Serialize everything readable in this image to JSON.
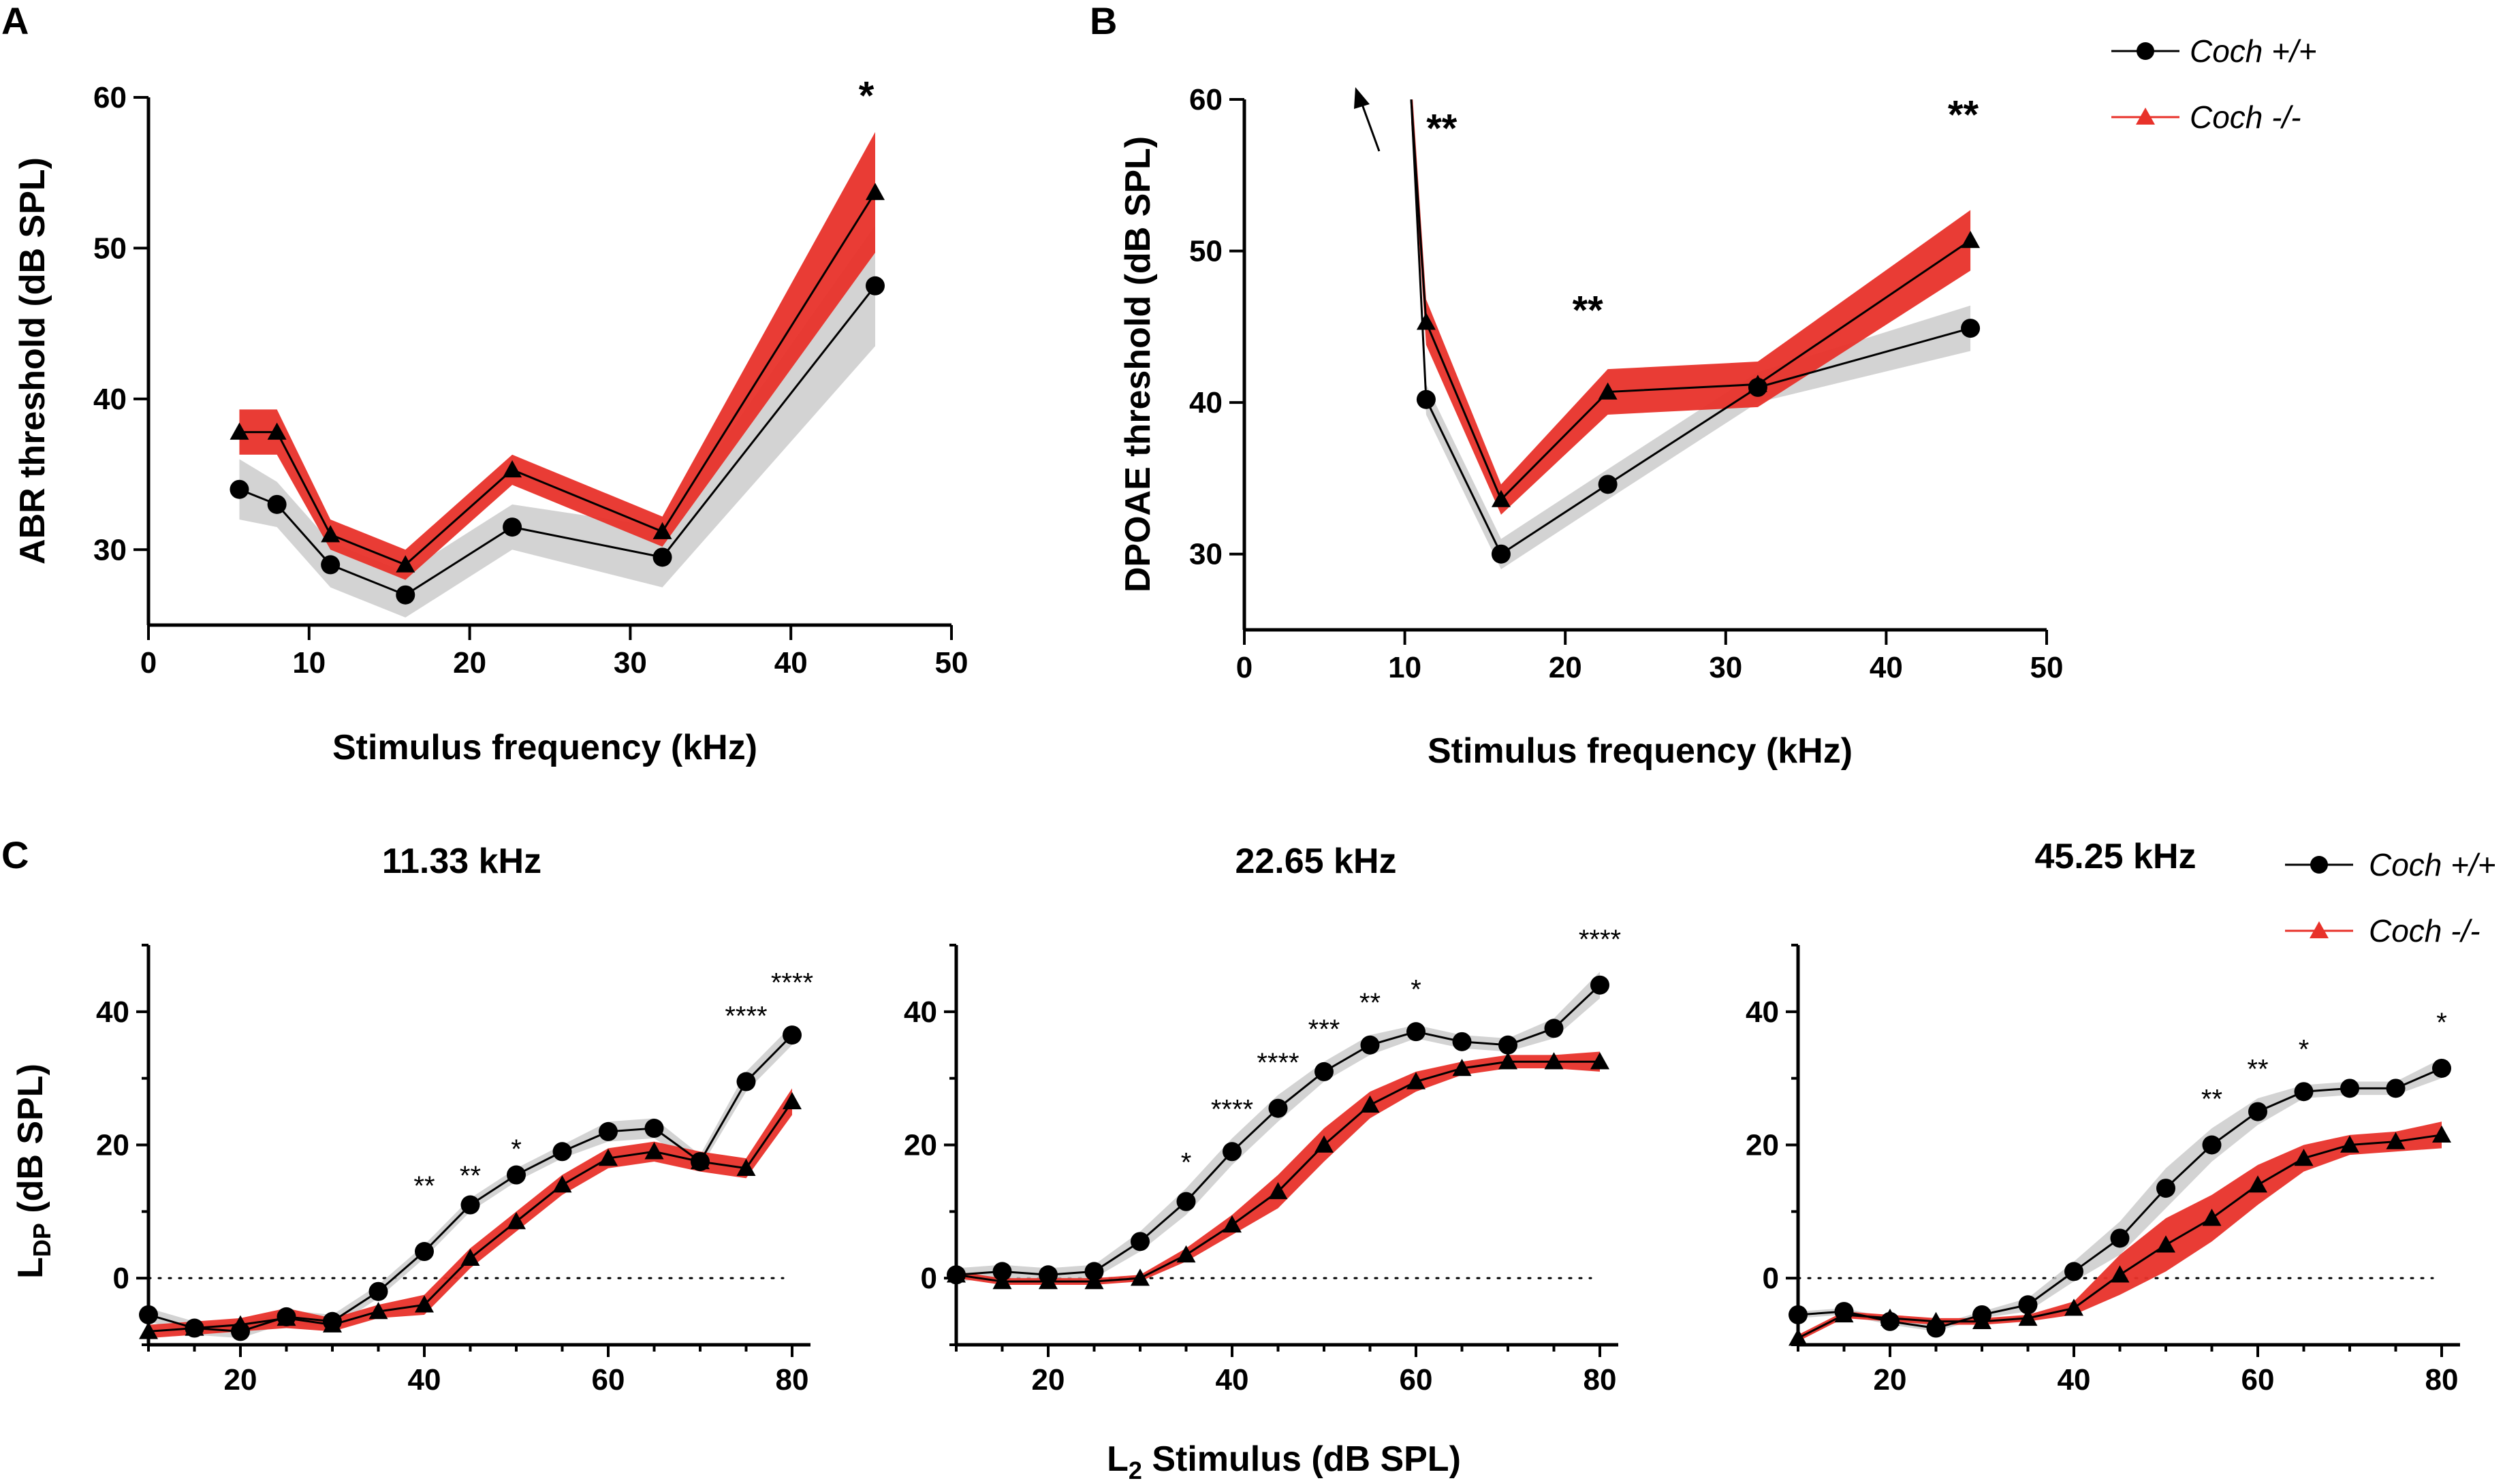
{
  "legend": {
    "wt": "Coch +/+",
    "ko": "Coch -/-"
  },
  "colors": {
    "wt_band": "#c8c8c8",
    "ko_band": "#e8322a",
    "ko_marker": "#e8322a",
    "line": "#000000"
  },
  "chart_data": [
    {
      "id": "A",
      "letter": "A",
      "type": "line",
      "xlabel": "Stimulus frequency (kHz)",
      "ylabel": "ABR threshold (dB SPL)",
      "xlim": [
        0,
        50
      ],
      "ylim": [
        25,
        60
      ],
      "xticks": [
        0,
        10,
        20,
        30,
        40,
        50
      ],
      "yticks": [
        30,
        40,
        50,
        60
      ],
      "series": [
        {
          "name": "Coch +/+",
          "x": [
            5.66,
            8,
            11.33,
            16,
            22.65,
            32,
            45.25
          ],
          "values": [
            34,
            33,
            29,
            27,
            31.5,
            29.5,
            47.5
          ],
          "band": [
            2,
            1.5,
            1.5,
            1.5,
            1.5,
            2,
            4
          ]
        },
        {
          "name": "Coch -/-",
          "x": [
            5.66,
            8,
            11.33,
            16,
            22.65,
            32,
            45.25
          ],
          "values": [
            37.8,
            37.8,
            31,
            29,
            35.3,
            31.2,
            53.7
          ],
          "band": [
            1.5,
            1.5,
            1,
            1,
            1,
            1,
            4
          ]
        }
      ],
      "annotations": [
        {
          "x": 44.7,
          "y": 59.2,
          "text": "*"
        }
      ]
    },
    {
      "id": "B",
      "letter": "B",
      "type": "line",
      "xlabel": "Stimulus frequency (kHz)",
      "ylabel": "DPOAE threshold (dB SPL)",
      "xlim": [
        0,
        50
      ],
      "ylim": [
        25,
        60
      ],
      "xticks": [
        0,
        10,
        20,
        30,
        40,
        50
      ],
      "yticks": [
        30,
        40,
        50,
        60
      ],
      "series": [
        {
          "name": "Coch +/+",
          "x": [
            10.4,
            11.33,
            16,
            22.65,
            32,
            45.25
          ],
          "values": [
            60,
            40.2,
            30,
            34.6,
            41,
            44.9
          ],
          "band": [
            1,
            1,
            1,
            1,
            1,
            1.5
          ]
        },
        {
          "name": "Coch -/-",
          "x": [
            10.4,
            11.33,
            16,
            22.65,
            32,
            45.25
          ],
          "values": [
            60,
            45.3,
            33.6,
            40.7,
            41.2,
            50.7
          ],
          "band": [
            1.5,
            1.5,
            1,
            1.5,
            1.5,
            2
          ]
        }
      ],
      "annotations": [
        {
          "x": 12.3,
          "y": 57.2,
          "text": "**"
        },
        {
          "x": 21.4,
          "y": 45.2,
          "text": "**"
        },
        {
          "x": 44.8,
          "y": 58.1,
          "text": "**"
        }
      ]
    },
    {
      "id": "C1",
      "letter": "C",
      "title": "11.33 kHz",
      "type": "line",
      "xlabel": "",
      "ylabel": "L DP (dB SPL)",
      "xlim": [
        10,
        82
      ],
      "ylim": [
        -10,
        50
      ],
      "xticks": [
        20,
        40,
        60,
        80
      ],
      "yticks": [
        0,
        20,
        40
      ],
      "series": [
        {
          "name": "Coch +/+",
          "x": [
            10,
            15,
            20,
            25,
            30,
            35,
            40,
            45,
            50,
            55,
            60,
            65,
            70,
            75,
            80
          ],
          "values": [
            -5.5,
            -7.5,
            -8,
            -5.8,
            -6.5,
            -2,
            4,
            11,
            15.5,
            19,
            22,
            22.5,
            17.5,
            29.5,
            36.5
          ],
          "band": [
            1,
            1,
            1,
            1,
            1,
            1,
            1,
            1,
            1,
            1,
            1.5,
            1.5,
            1,
            1.5,
            1.5
          ]
        },
        {
          "name": "Coch -/-",
          "x": [
            10,
            15,
            20,
            25,
            30,
            35,
            40,
            45,
            50,
            55,
            60,
            65,
            70,
            75,
            80
          ],
          "values": [
            -8,
            -7.5,
            -7,
            -6,
            -7,
            -5,
            -4,
            3,
            8.5,
            14,
            18,
            19,
            17.5,
            16.5,
            26.5
          ],
          "band": [
            1,
            1,
            1,
            1.5,
            1,
            1,
            1.5,
            1.5,
            1.5,
            1.5,
            1.5,
            1.5,
            1.5,
            1.5,
            2
          ]
        }
      ],
      "annotations": [
        {
          "x": 40,
          "y": 12.5,
          "text": "**"
        },
        {
          "x": 45,
          "y": 14,
          "text": "**"
        },
        {
          "x": 50,
          "y": 18,
          "text": "*"
        },
        {
          "x": 75,
          "y": 38,
          "text": "****"
        },
        {
          "x": 80,
          "y": 43,
          "text": "****"
        }
      ]
    },
    {
      "id": "C2",
      "letter": "",
      "title": "22.65 kHz",
      "type": "line",
      "xlabel": "",
      "ylabel": "",
      "xlim": [
        10,
        82
      ],
      "ylim": [
        -10,
        50
      ],
      "xticks": [
        20,
        40,
        60,
        80
      ],
      "yticks": [
        0,
        20,
        40
      ],
      "series": [
        {
          "name": "Coch +/+",
          "x": [
            10,
            15,
            20,
            25,
            30,
            35,
            40,
            45,
            50,
            55,
            60,
            65,
            70,
            75,
            80
          ],
          "values": [
            0.5,
            1,
            0.5,
            1,
            5.5,
            11.5,
            19,
            25.5,
            31,
            35,
            37,
            35.5,
            35,
            37.5,
            44
          ],
          "band": [
            1,
            1,
            1,
            1,
            1.5,
            2,
            2,
            2,
            1.5,
            1.5,
            1,
            1,
            1,
            1.5,
            2
          ]
        },
        {
          "name": "Coch -/-",
          "x": [
            10,
            15,
            20,
            25,
            30,
            35,
            40,
            45,
            50,
            55,
            60,
            65,
            70,
            75,
            80
          ],
          "values": [
            0.5,
            -0.5,
            -0.5,
            -0.5,
            0,
            3.5,
            8,
            13,
            20,
            26,
            29.5,
            31.5,
            32.5,
            32.5,
            32.5
          ],
          "band": [
            0.5,
            0.5,
            0.5,
            0.5,
            0.5,
            1,
            1.5,
            2.5,
            2.5,
            2,
            1.5,
            1,
            1,
            1,
            1.5
          ]
        }
      ],
      "annotations": [
        {
          "x": 35,
          "y": 16,
          "text": "*"
        },
        {
          "x": 40,
          "y": 24,
          "text": "****"
        },
        {
          "x": 45,
          "y": 31,
          "text": "****"
        },
        {
          "x": 50,
          "y": 36,
          "text": "***"
        },
        {
          "x": 55,
          "y": 40,
          "text": "**"
        },
        {
          "x": 60,
          "y": 42,
          "text": "*"
        },
        {
          "x": 80,
          "y": 49.5,
          "text": "****"
        }
      ]
    },
    {
      "id": "C3",
      "letter": "",
      "title": "45.25 kHz",
      "type": "line",
      "xlabel": "",
      "ylabel": "",
      "xlim": [
        10,
        82
      ],
      "ylim": [
        -10,
        50
      ],
      "xticks": [
        20,
        40,
        60,
        80
      ],
      "yticks": [
        0,
        20,
        40
      ],
      "series": [
        {
          "name": "Coch +/+",
          "x": [
            10,
            15,
            20,
            25,
            30,
            35,
            40,
            45,
            50,
            55,
            60,
            65,
            70,
            75,
            80
          ],
          "values": [
            -5.5,
            -5,
            -6.5,
            -7.5,
            -5.5,
            -4,
            1,
            6,
            13.5,
            20,
            25,
            28,
            28.5,
            28.5,
            31.5
          ],
          "band": [
            0.5,
            0.5,
            0.5,
            0.5,
            0.5,
            1,
            1.5,
            2.5,
            3,
            2.5,
            2,
            1,
            1,
            1,
            1.5
          ]
        },
        {
          "name": "Coch -/-",
          "x": [
            10,
            15,
            20,
            25,
            30,
            35,
            40,
            45,
            50,
            55,
            60,
            65,
            70,
            75,
            80
          ],
          "values": [
            -9,
            -5.5,
            -6,
            -6.5,
            -6.5,
            -6,
            -4.5,
            0.5,
            5,
            9,
            14,
            18,
            20,
            20.5,
            21.5
          ],
          "band": [
            0.5,
            0.5,
            0.5,
            0.5,
            0.5,
            0.5,
            1,
            3,
            4,
            3.5,
            3,
            2,
            1.5,
            1.5,
            2
          ]
        }
      ],
      "annotations": [
        {
          "x": 55,
          "y": 25.5,
          "text": "**"
        },
        {
          "x": 60,
          "y": 30,
          "text": "**"
        },
        {
          "x": 65,
          "y": 33,
          "text": "*"
        },
        {
          "x": 80,
          "y": 37,
          "text": "*"
        }
      ]
    }
  ],
  "bottom_label": {
    "main": "L",
    "sub": "2",
    "rest": " Stimulus (dB SPL)"
  },
  "ylabel_c": {
    "main": "L",
    "sub": "DP",
    "rest": " (dB SPL)"
  }
}
